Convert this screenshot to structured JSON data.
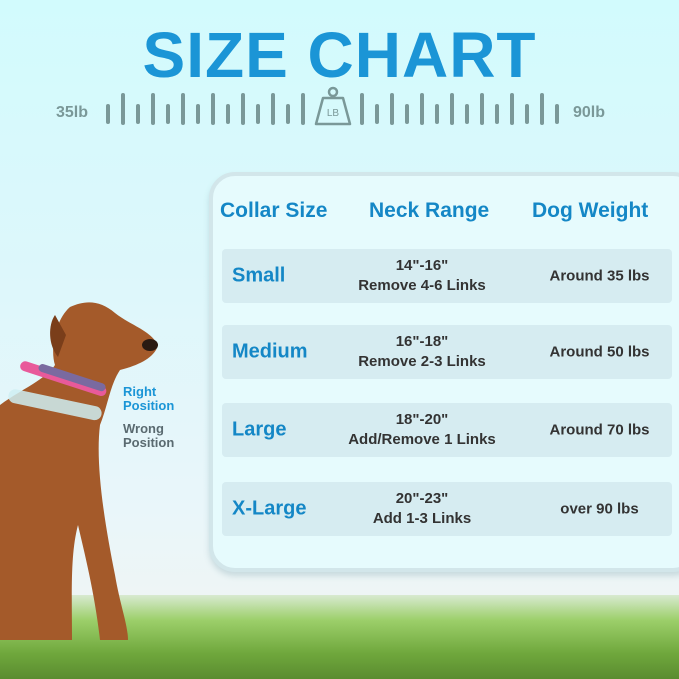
{
  "title": "SIZE CHART",
  "scale": {
    "min_label": "35lb",
    "max_label": "90lb",
    "weight_icon_label": "LB"
  },
  "table": {
    "headers": [
      "Collar Size",
      "Neck Range",
      "Dog Weight"
    ],
    "rows": [
      {
        "size": "Small",
        "neck": "14\"-16\"",
        "links": "Remove 4-6 Links",
        "weight": "Around 35 lbs"
      },
      {
        "size": "Medium",
        "neck": "16\"-18\"",
        "links": "Remove 2-3 Links",
        "weight": "Around 50 lbs"
      },
      {
        "size": "Large",
        "neck": "18\"-20\"",
        "links": "Add/Remove 1 Links",
        "weight": "Around 70 lbs"
      },
      {
        "size": "X-Large",
        "neck": "20\"-23\"",
        "links": "Add 1-3 Links",
        "weight": "over 90 lbs"
      }
    ]
  },
  "positions": {
    "right": "Right Position",
    "wrong": "Wrong Position",
    "right_color": "#1b95d6",
    "wrong_color": "#5a6a70"
  },
  "colors": {
    "accent": "#1b95d6",
    "scale": "#7a9898"
  }
}
